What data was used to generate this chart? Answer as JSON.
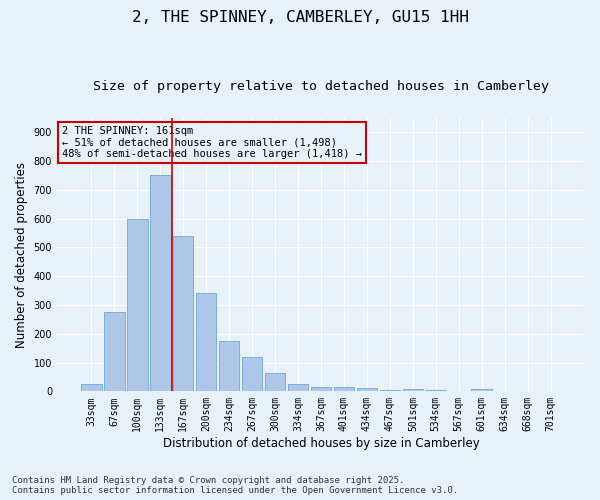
{
  "title": "2, THE SPINNEY, CAMBERLEY, GU15 1HH",
  "subtitle": "Size of property relative to detached houses in Camberley",
  "xlabel": "Distribution of detached houses by size in Camberley",
  "ylabel": "Number of detached properties",
  "categories": [
    "33sqm",
    "67sqm",
    "100sqm",
    "133sqm",
    "167sqm",
    "200sqm",
    "234sqm",
    "267sqm",
    "300sqm",
    "334sqm",
    "367sqm",
    "401sqm",
    "434sqm",
    "467sqm",
    "501sqm",
    "534sqm",
    "567sqm",
    "601sqm",
    "634sqm",
    "668sqm",
    "701sqm"
  ],
  "values": [
    25,
    275,
    600,
    750,
    540,
    340,
    175,
    120,
    65,
    25,
    15,
    15,
    10,
    5,
    8,
    5,
    0,
    8,
    0,
    0,
    0
  ],
  "bar_color": "#aec6e8",
  "bar_edgecolor": "#6aaad4",
  "background_color": "#e8f0f8",
  "grid_color": "#ffffff",
  "vline_color": "#cc0000",
  "annotation_text": "2 THE SPINNEY: 161sqm\n← 51% of detached houses are smaller (1,498)\n48% of semi-detached houses are larger (1,418) →",
  "annotation_box_color": "#cc0000",
  "ylim": [
    0,
    950
  ],
  "yticks": [
    0,
    100,
    200,
    300,
    400,
    500,
    600,
    700,
    800,
    900
  ],
  "footnote": "Contains HM Land Registry data © Crown copyright and database right 2025.\nContains public sector information licensed under the Open Government Licence v3.0.",
  "title_fontsize": 11.5,
  "subtitle_fontsize": 9.5,
  "label_fontsize": 8.5,
  "tick_fontsize": 7,
  "annotation_fontsize": 7.5,
  "footnote_fontsize": 6.5
}
